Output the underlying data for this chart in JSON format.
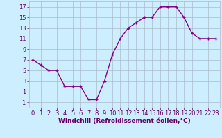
{
  "x": [
    0,
    1,
    2,
    3,
    4,
    5,
    6,
    7,
    8,
    9,
    10,
    11,
    12,
    13,
    14,
    15,
    16,
    17,
    18,
    19,
    20,
    21,
    22,
    23
  ],
  "y": [
    7,
    6,
    5,
    5,
    2,
    2,
    2,
    -0.5,
    -0.5,
    3,
    8,
    11,
    13,
    14,
    15,
    15,
    17,
    17,
    17,
    15,
    12,
    11,
    11,
    11
  ],
  "xlabel": "Windchill (Refroidissement éolien,°C)",
  "xlim": [
    -0.5,
    23.5
  ],
  "ylim": [
    -2,
    18
  ],
  "yticks": [
    -1,
    1,
    3,
    5,
    7,
    9,
    11,
    13,
    15,
    17
  ],
  "xticks": [
    0,
    1,
    2,
    3,
    4,
    5,
    6,
    7,
    8,
    9,
    10,
    11,
    12,
    13,
    14,
    15,
    16,
    17,
    18,
    19,
    20,
    21,
    22,
    23
  ],
  "line_color": "#880088",
  "marker": "+",
  "background_color": "#cceeff",
  "grid_color": "#aabbcc",
  "xlabel_fontsize": 6.5,
  "tick_fontsize": 6.0,
  "linewidth": 1.0,
  "markersize": 3.5,
  "markeredgewidth": 1.0
}
